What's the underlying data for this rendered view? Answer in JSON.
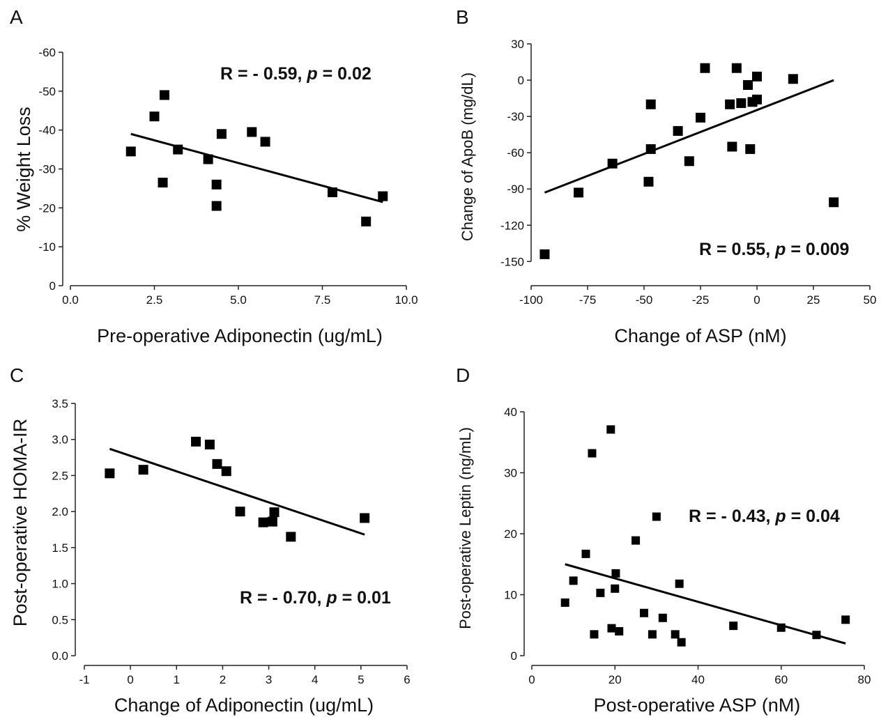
{
  "chart_data": [
    {
      "panel": "A",
      "type": "scatter",
      "xlabel": "Pre-operative Adiponectin (ug/mL)",
      "ylabel": "% Weight Loss",
      "xlim": [
        0,
        10
      ],
      "ylim": [
        0,
        -60
      ],
      "y_inverted": true,
      "x_ticks": [
        "0.0",
        "2.5",
        "5.0",
        "7.5",
        "10.0"
      ],
      "x_tick_values": [
        0,
        2.5,
        5,
        7.5,
        10
      ],
      "y_ticks": [
        "0",
        "-10",
        "-20",
        "-30",
        "-40",
        "-50",
        "-60"
      ],
      "y_tick_values": [
        0,
        -10,
        -20,
        -30,
        -40,
        -50,
        -60
      ],
      "annotation": {
        "prefix": "R = - 0.59, ",
        "p_symbol": "p",
        "suffix": " = 0.02"
      },
      "points": [
        [
          1.8,
          -34.5
        ],
        [
          2.5,
          -43.5
        ],
        [
          2.8,
          -49
        ],
        [
          2.75,
          -26.5
        ],
        [
          3.2,
          -35
        ],
        [
          4.1,
          -32.5
        ],
        [
          4.35,
          -26
        ],
        [
          4.35,
          -20.5
        ],
        [
          4.5,
          -39
        ],
        [
          5.4,
          -39.5
        ],
        [
          5.8,
          -37
        ],
        [
          7.8,
          -24
        ],
        [
          8.8,
          -16.5
        ],
        [
          9.3,
          -23
        ]
      ],
      "trendline": [
        [
          1.8,
          -39
        ],
        [
          9.3,
          -21.5
        ]
      ],
      "grid": false
    },
    {
      "panel": "B",
      "type": "scatter",
      "xlabel": "Change of ASP (nM)",
      "ylabel": "Change of ApoB (mg/dL)",
      "xlim": [
        -100,
        50
      ],
      "ylim": [
        -170,
        30
      ],
      "x_ticks": [
        "-100",
        "-75",
        "-50",
        "-25",
        "0",
        "25",
        "50"
      ],
      "x_tick_values": [
        -100,
        -75,
        -50,
        -25,
        0,
        25,
        50
      ],
      "y_ticks": [
        "30",
        "0",
        "-30",
        "-60",
        "-90",
        "-120",
        "-150"
      ],
      "y_tick_values": [
        30,
        0,
        -30,
        -60,
        -90,
        -120,
        -150
      ],
      "annotation": {
        "prefix": "R = 0.55, ",
        "p_symbol": "p",
        "suffix": " = 0.009"
      },
      "points": [
        [
          -94,
          -144
        ],
        [
          -79,
          -93
        ],
        [
          -64,
          -69
        ],
        [
          -48,
          -84
        ],
        [
          -47,
          -20
        ],
        [
          -47,
          -57
        ],
        [
          -35,
          -42
        ],
        [
          -30,
          -67
        ],
        [
          -25,
          -31
        ],
        [
          -23,
          10
        ],
        [
          -12,
          -20
        ],
        [
          -11,
          -55
        ],
        [
          -9,
          10
        ],
        [
          -7,
          -19
        ],
        [
          -4,
          -4
        ],
        [
          -3,
          -57
        ],
        [
          -2,
          -18
        ],
        [
          0,
          -16
        ],
        [
          0,
          3
        ],
        [
          16,
          1
        ],
        [
          34,
          -101
        ]
      ],
      "trendline": [
        [
          -94,
          -93
        ],
        [
          34,
          0
        ]
      ],
      "grid": false
    },
    {
      "panel": "C",
      "type": "scatter",
      "xlabel": "Change of Adiponectin (ug/mL)",
      "ylabel": "Post-operative HOMA-IR",
      "xlim": [
        -1,
        6
      ],
      "ylim": [
        0,
        3.5
      ],
      "x_ticks": [
        "-1",
        "0",
        "1",
        "2",
        "3",
        "4",
        "5",
        "6"
      ],
      "x_tick_values": [
        -1,
        0,
        1,
        2,
        3,
        4,
        5,
        6
      ],
      "y_ticks": [
        "0.0",
        "0.5",
        "1.0",
        "1.5",
        "2.0",
        "2.5",
        "3.0",
        "3.5"
      ],
      "y_tick_values": [
        0,
        0.5,
        1,
        1.5,
        2,
        2.5,
        3,
        3.5
      ],
      "annotation": {
        "prefix": "R = - 0.70, ",
        "p_symbol": "p",
        "suffix": " = 0.01"
      },
      "points": [
        [
          -0.45,
          2.53
        ],
        [
          0.28,
          2.58
        ],
        [
          1.42,
          2.97
        ],
        [
          1.72,
          2.93
        ],
        [
          1.88,
          2.66
        ],
        [
          2.08,
          2.56
        ],
        [
          2.38,
          2.0
        ],
        [
          2.88,
          1.85
        ],
        [
          3.08,
          1.86
        ],
        [
          3.12,
          1.99
        ],
        [
          3.48,
          1.65
        ],
        [
          5.08,
          1.91
        ]
      ],
      "trendline": [
        [
          -0.45,
          2.87
        ],
        [
          5.08,
          1.68
        ]
      ],
      "grid": false
    },
    {
      "panel": "D",
      "type": "scatter",
      "xlabel": "Post-operative ASP (nM)",
      "ylabel": "Post-operative Leptin (ng/mL)",
      "xlim": [
        0,
        80
      ],
      "ylim": [
        0,
        40
      ],
      "x_ticks": [
        "0",
        "20",
        "40",
        "60",
        "80"
      ],
      "x_tick_values": [
        0,
        20,
        40,
        60,
        80
      ],
      "y_ticks": [
        "0",
        "10",
        "20",
        "30",
        "40"
      ],
      "y_tick_values": [
        0,
        10,
        20,
        30,
        40
      ],
      "annotation": {
        "prefix": "R = - 0.43, ",
        "p_symbol": "p",
        "suffix": " = 0.04"
      },
      "points": [
        [
          8,
          8.7
        ],
        [
          10,
          12.3
        ],
        [
          13,
          16.7
        ],
        [
          14.5,
          33.2
        ],
        [
          15,
          3.5
        ],
        [
          16.5,
          10.3
        ],
        [
          19,
          37.1
        ],
        [
          19.2,
          4.5
        ],
        [
          20,
          11
        ],
        [
          20.2,
          13.5
        ],
        [
          21,
          4
        ],
        [
          25,
          18.9
        ],
        [
          27,
          7
        ],
        [
          29,
          3.5
        ],
        [
          30,
          22.8
        ],
        [
          31.5,
          6.2
        ],
        [
          34.5,
          3.5
        ],
        [
          35.5,
          11.8
        ],
        [
          36,
          2.2
        ],
        [
          48.5,
          4.9
        ],
        [
          60,
          4.6
        ],
        [
          68.5,
          3.4
        ],
        [
          75.5,
          5.9
        ]
      ],
      "trendline": [
        [
          8,
          15
        ],
        [
          75.5,
          2
        ]
      ],
      "grid": false
    }
  ]
}
